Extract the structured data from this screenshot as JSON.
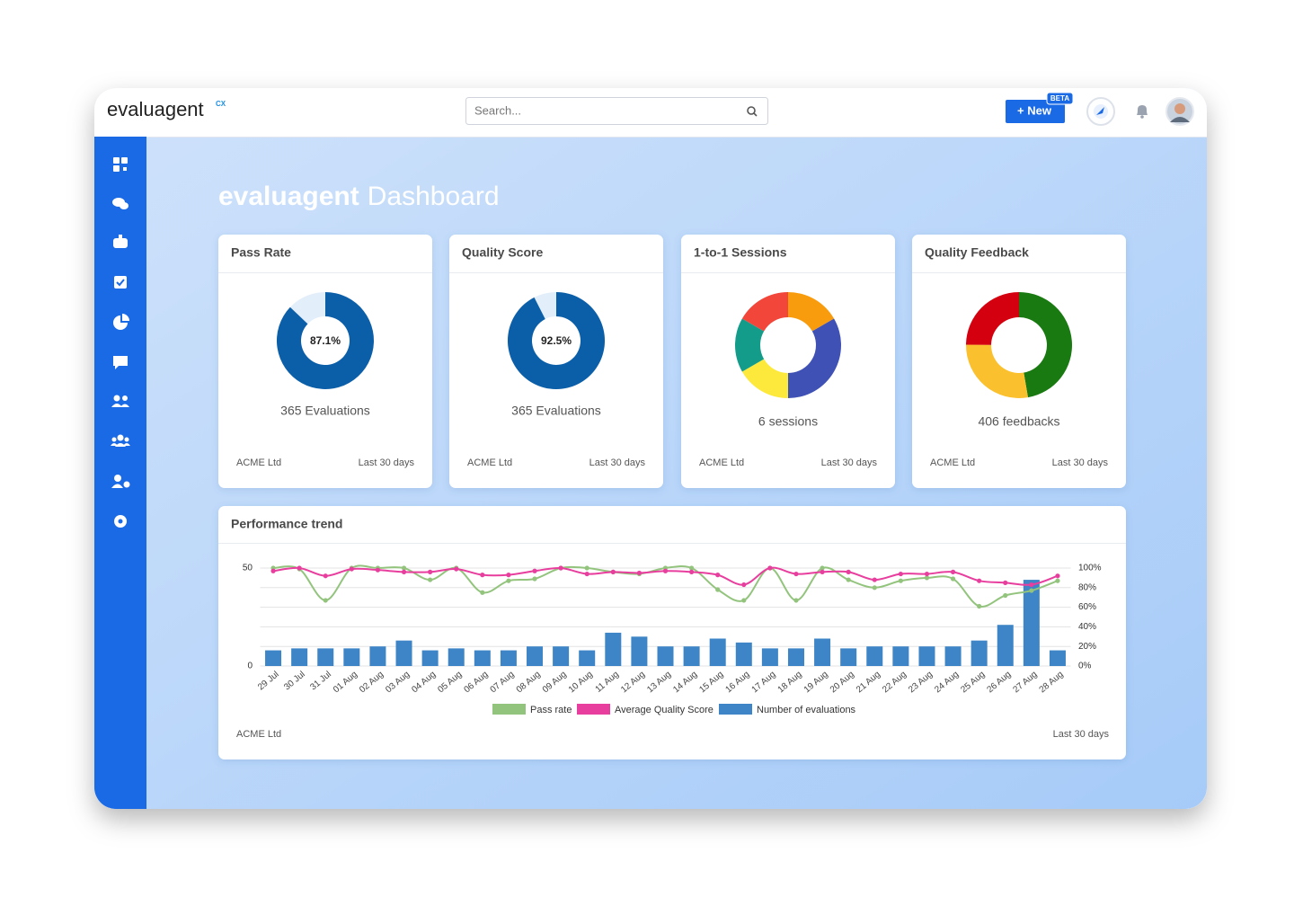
{
  "header": {
    "logo": "evaluagent",
    "logo_sup": "CX",
    "search_placeholder": "Search...",
    "new_button": "+ New",
    "beta_badge": "BETA"
  },
  "page_title": {
    "brand": "evaluagent",
    "text": "Dashboard"
  },
  "cards": [
    {
      "title": "Pass Rate",
      "chart_data": {
        "type": "gauge",
        "values": [
          87.1
        ],
        "value_labels": [
          "87.1%"
        ],
        "ylim": [
          0,
          100
        ],
        "color": "#0b5ea8",
        "track_color": "#e3eefb"
      },
      "caption": "365 Evaluations",
      "company": "ACME Ltd",
      "period": "Last 30 days"
    },
    {
      "title": "Quality Score",
      "chart_data": {
        "type": "gauge",
        "values": [
          92.5
        ],
        "value_labels": [
          "92.5%"
        ],
        "ylim": [
          0,
          100
        ],
        "color": "#0b5ea8",
        "track_color": "#e3eefb"
      },
      "caption": "365 Evaluations",
      "company": "ACME Ltd",
      "period": "Last 30 days"
    },
    {
      "title": "1-to-1 Sessions",
      "chart_data": {
        "type": "donut",
        "values": [
          1,
          2,
          1,
          1,
          1
        ],
        "colors": [
          "#f89c0e",
          "#3f51b5",
          "#fde93b",
          "#149c8a",
          "#f2463a"
        ]
      },
      "caption": "6 sessions",
      "company": "ACME Ltd",
      "period": "Last 30 days"
    },
    {
      "title": "Quality Feedback",
      "chart_data": {
        "type": "donut",
        "values": [
          192,
          113,
          101
        ],
        "colors": [
          "#1a7a12",
          "#fbc02d",
          "#d5000f"
        ]
      },
      "caption": "406 feedbacks",
      "company": "ACME Ltd",
      "period": "Last 30 days"
    }
  ],
  "trend": {
    "title": "Performance trend",
    "company": "ACME Ltd",
    "period": "Last 30 days",
    "chart_data": {
      "type": "bar-line",
      "grid": true,
      "categories": [
        "29 Jul",
        "30 Jul",
        "31 Jul",
        "01 Aug",
        "02 Aug",
        "03 Aug",
        "04 Aug",
        "05 Aug",
        "06 Aug",
        "07 Aug",
        "08 Aug",
        "09 Aug",
        "10 Aug",
        "11 Aug",
        "12 Aug",
        "13 Aug",
        "14 Aug",
        "15 Aug",
        "16 Aug",
        "17 Aug",
        "18 Aug",
        "19 Aug",
        "20 Aug",
        "21 Aug",
        "22 Aug",
        "23 Aug",
        "24 Aug",
        "25 Aug",
        "26 Aug",
        "27 Aug",
        "28 Aug"
      ],
      "ylim": [
        0,
        50
      ],
      "yticks": [
        0,
        50
      ],
      "y2lim": [
        0,
        100
      ],
      "y2ticks": [
        {
          "value": 0,
          "label": "0%"
        },
        {
          "value": 20,
          "label": "20%"
        },
        {
          "value": 40,
          "label": "40%"
        },
        {
          "value": 60,
          "label": "60%"
        },
        {
          "value": 80,
          "label": "80%"
        },
        {
          "value": 100,
          "label": "100%"
        }
      ],
      "series": [
        {
          "name": "Pass rate",
          "type": "line",
          "axis": "y2",
          "color": "#93c47d",
          "values": [
            100,
            99,
            67,
            100,
            100,
            100,
            88,
            100,
            75,
            87,
            89,
            100,
            100,
            96,
            94,
            100,
            100,
            78,
            67,
            100,
            67,
            100,
            88,
            80,
            87,
            90,
            89,
            61,
            72,
            77,
            87
          ]
        },
        {
          "name": "Average Quality Score",
          "type": "line",
          "axis": "y2",
          "color": "#e83e9e",
          "values": [
            97,
            100,
            92,
            99,
            98,
            96,
            96,
            99,
            93,
            93,
            97,
            100,
            94,
            96,
            95,
            97,
            96,
            93,
            83,
            100,
            94,
            96,
            96,
            88,
            94,
            94,
            96,
            87,
            85,
            83,
            92
          ]
        },
        {
          "name": "Number of evaluations",
          "type": "bar",
          "color": "#3d85c6",
          "values": [
            8,
            9,
            9,
            9,
            10,
            13,
            8,
            9,
            8,
            8,
            10,
            10,
            8,
            17,
            15,
            10,
            10,
            14,
            12,
            9,
            9,
            14,
            9,
            10,
            10,
            10,
            10,
            13,
            21,
            44,
            8
          ]
        }
      ]
    }
  }
}
